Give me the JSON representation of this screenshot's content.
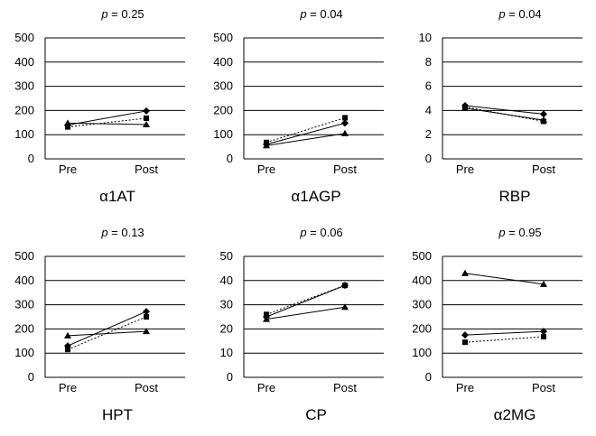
{
  "chart_data": [
    {
      "type": "line",
      "title": "α1AT",
      "p_label": "p",
      "p_value": "= 0.25",
      "categories": [
        "Pre",
        "Post"
      ],
      "ylim": [
        0,
        500
      ],
      "yticks": [
        "0",
        "100",
        "200",
        "300",
        "400",
        "500"
      ],
      "grid": true,
      "series": [
        {
          "marker": "diamond",
          "style": "solid",
          "values": [
            140,
            198
          ]
        },
        {
          "marker": "square",
          "style": "dotted",
          "values": [
            132,
            168
          ]
        },
        {
          "marker": "triangle",
          "style": "solid",
          "values": [
            148,
            142
          ]
        }
      ]
    },
    {
      "type": "line",
      "title": "α1AGP",
      "p_label": "p",
      "p_value": "= 0.04",
      "categories": [
        "Pre",
        "Post"
      ],
      "ylim": [
        0,
        500
      ],
      "yticks": [
        "0",
        "100",
        "200",
        "300",
        "400",
        "500"
      ],
      "grid": true,
      "series": [
        {
          "marker": "diamond",
          "style": "solid",
          "values": [
            60,
            148
          ]
        },
        {
          "marker": "square",
          "style": "dotted",
          "values": [
            68,
            170
          ]
        },
        {
          "marker": "triangle",
          "style": "solid",
          "values": [
            55,
            105
          ]
        }
      ]
    },
    {
      "type": "line",
      "title": "RBP",
      "p_label": "p",
      "p_value": "= 0.04",
      "categories": [
        "Pre",
        "Post"
      ],
      "ylim": [
        0,
        10
      ],
      "yticks": [
        "0",
        "2",
        "4",
        "6",
        "8",
        "10"
      ],
      "grid": true,
      "series": [
        {
          "marker": "diamond",
          "style": "solid",
          "values": [
            4.4,
            3.7
          ]
        },
        {
          "marker": "square",
          "style": "dotted",
          "values": [
            4.3,
            3.1
          ]
        },
        {
          "marker": "triangle",
          "style": "solid",
          "values": [
            4.2,
            3.2
          ]
        }
      ]
    },
    {
      "type": "line",
      "title": "HPT",
      "p_label": "p",
      "p_value": "= 0.13",
      "categories": [
        "Pre",
        "Post"
      ],
      "ylim": [
        0,
        500
      ],
      "yticks": [
        "0",
        "100",
        "200",
        "300",
        "400",
        "500"
      ],
      "grid": true,
      "series": [
        {
          "marker": "diamond",
          "style": "solid",
          "values": [
            130,
            272
          ]
        },
        {
          "marker": "square",
          "style": "dotted",
          "values": [
            115,
            250
          ]
        },
        {
          "marker": "triangle",
          "style": "solid",
          "values": [
            172,
            190
          ]
        }
      ]
    },
    {
      "type": "line",
      "title": "CP",
      "p_label": "p",
      "p_value": "= 0.06",
      "categories": [
        "Pre",
        "Post"
      ],
      "ylim": [
        0,
        50
      ],
      "yticks": [
        "0",
        "10",
        "20",
        "30",
        "40",
        "50"
      ],
      "grid": true,
      "series": [
        {
          "marker": "diamond",
          "style": "solid",
          "values": [
            25,
            38
          ]
        },
        {
          "marker": "square",
          "style": "dotted",
          "values": [
            26,
            38
          ]
        },
        {
          "marker": "triangle",
          "style": "solid",
          "values": [
            24,
            29
          ]
        }
      ]
    },
    {
      "type": "line",
      "title": "α2MG",
      "p_label": "p",
      "p_value": "= 0.95",
      "categories": [
        "Pre",
        "Post"
      ],
      "ylim": [
        0,
        500
      ],
      "yticks": [
        "0",
        "100",
        "200",
        "300",
        "400",
        "500"
      ],
      "grid": true,
      "series": [
        {
          "marker": "diamond",
          "style": "solid",
          "values": [
            175,
            190
          ]
        },
        {
          "marker": "square",
          "style": "dotted",
          "values": [
            145,
            168
          ]
        },
        {
          "marker": "triangle",
          "style": "solid",
          "values": [
            430,
            385
          ]
        }
      ]
    }
  ]
}
